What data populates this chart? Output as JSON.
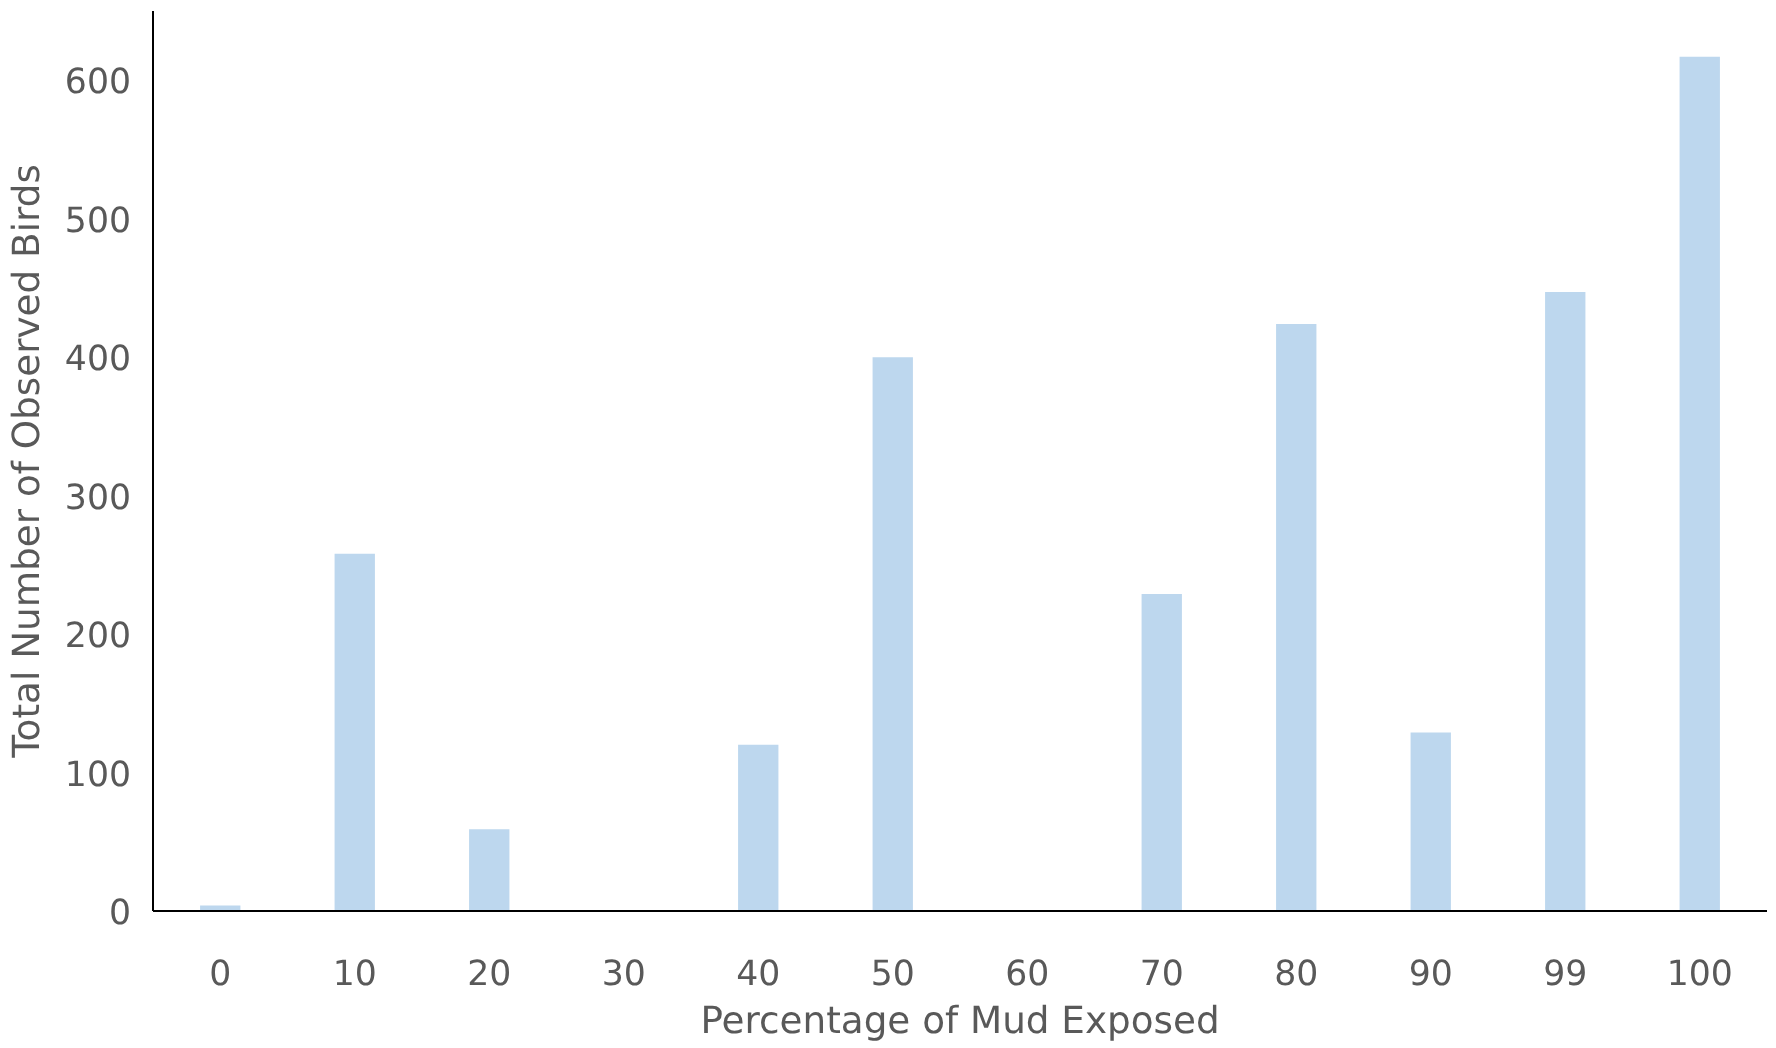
{
  "chart_data": {
    "type": "bar",
    "xlabel": "Percentage of Mud Exposed",
    "ylabel": "Total Number of Observed Birds",
    "categories": [
      "0",
      "10",
      "20",
      "30",
      "40",
      "50",
      "60",
      "70",
      "80",
      "90",
      "99",
      "100"
    ],
    "values": [
      4,
      258,
      59,
      0,
      120,
      400,
      0,
      229,
      424,
      129,
      447,
      617
    ],
    "color": "#bdd7ee",
    "ylim": [
      0,
      650
    ],
    "yticks": [
      0,
      100,
      200,
      300,
      400,
      500,
      600
    ],
    "grid": false
  }
}
